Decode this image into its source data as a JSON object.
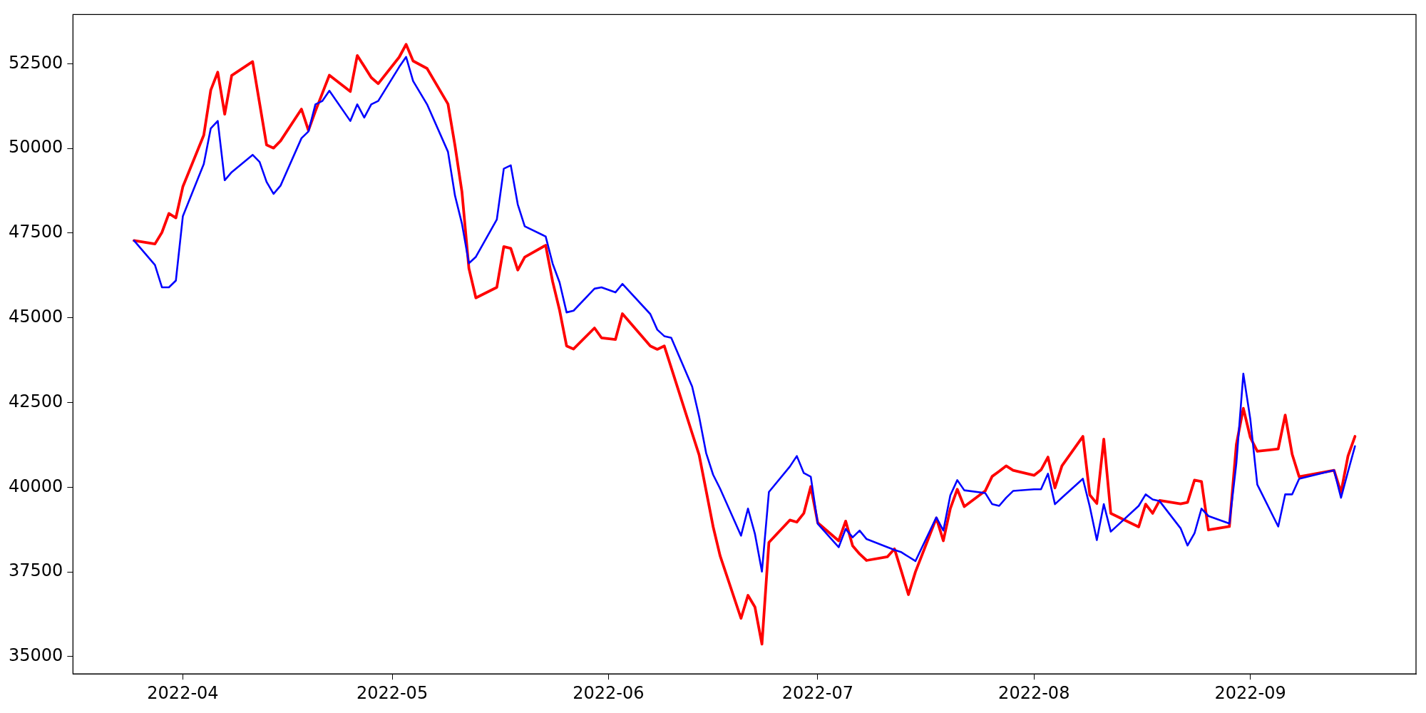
{
  "chart_data": {
    "type": "line",
    "grid": false,
    "marker": "none",
    "x": [
      "2022-03-25",
      "2022-03-28",
      "2022-03-29",
      "2022-03-30",
      "2022-03-31",
      "2022-04-01",
      "2022-04-04",
      "2022-04-05",
      "2022-04-06",
      "2022-04-07",
      "2022-04-08",
      "2022-04-11",
      "2022-04-12",
      "2022-04-13",
      "2022-04-14",
      "2022-04-15",
      "2022-04-18",
      "2022-04-19",
      "2022-04-20",
      "2022-04-21",
      "2022-04-22",
      "2022-04-25",
      "2022-04-26",
      "2022-04-27",
      "2022-04-28",
      "2022-04-29",
      "2022-05-02",
      "2022-05-03",
      "2022-05-04",
      "2022-05-06",
      "2022-05-09",
      "2022-05-10",
      "2022-05-11",
      "2022-05-12",
      "2022-05-13",
      "2022-05-16",
      "2022-05-17",
      "2022-05-18",
      "2022-05-19",
      "2022-05-20",
      "2022-05-23",
      "2022-05-24",
      "2022-05-25",
      "2022-05-26",
      "2022-05-27",
      "2022-05-30",
      "2022-05-31",
      "2022-06-02",
      "2022-06-03",
      "2022-06-07",
      "2022-06-08",
      "2022-06-09",
      "2022-06-10",
      "2022-06-13",
      "2022-06-14",
      "2022-06-15",
      "2022-06-16",
      "2022-06-17",
      "2022-06-20",
      "2022-06-21",
      "2022-06-22",
      "2022-06-23",
      "2022-06-24",
      "2022-06-27",
      "2022-06-28",
      "2022-06-29",
      "2022-06-30",
      "2022-07-01",
      "2022-07-04",
      "2022-07-05",
      "2022-07-06",
      "2022-07-07",
      "2022-07-08",
      "2022-07-11",
      "2022-07-12",
      "2022-07-13",
      "2022-07-14",
      "2022-07-15",
      "2022-07-18",
      "2022-07-19",
      "2022-07-20",
      "2022-07-21",
      "2022-07-22",
      "2022-07-25",
      "2022-07-26",
      "2022-07-27",
      "2022-07-28",
      "2022-07-29",
      "2022-08-01",
      "2022-08-02",
      "2022-08-03",
      "2022-08-04",
      "2022-08-05",
      "2022-08-08",
      "2022-08-09",
      "2022-08-10",
      "2022-08-11",
      "2022-08-12",
      "2022-08-16",
      "2022-08-17",
      "2022-08-18",
      "2022-08-19",
      "2022-08-22",
      "2022-08-23",
      "2022-08-24",
      "2022-08-25",
      "2022-08-26",
      "2022-08-29",
      "2022-08-30",
      "2022-08-31",
      "2022-09-01",
      "2022-09-02",
      "2022-09-05",
      "2022-09-06",
      "2022-09-07",
      "2022-09-08",
      "2022-09-13",
      "2022-09-14",
      "2022-09-15",
      "2022-09-16"
    ],
    "series": [
      {
        "color": "#ff0000",
        "values": [
          47280,
          47180,
          47520,
          48080,
          47950,
          48870,
          50390,
          51720,
          52250,
          51010,
          52150,
          52560,
          51330,
          50100,
          50010,
          50220,
          51160,
          50530,
          51100,
          51630,
          52160,
          51680,
          52740,
          52420,
          52090,
          51910,
          52690,
          53070,
          52580,
          52360,
          51310,
          50090,
          48720,
          46460,
          45590,
          45900,
          47100,
          47050,
          46410,
          46790,
          47140,
          46070,
          45220,
          44170,
          44080,
          44700,
          44410,
          44360,
          45120,
          44170,
          44070,
          44170,
          43530,
          41590,
          40950,
          39900,
          38840,
          37980,
          36130,
          36810,
          36460,
          35370,
          38370,
          39030,
          38970,
          39230,
          40020,
          38950,
          38420,
          39000,
          38270,
          38030,
          37840,
          37950,
          38180,
          37510,
          36830,
          37500,
          39090,
          38420,
          39370,
          39940,
          39430,
          39890,
          40320,
          40470,
          40630,
          40500,
          40350,
          40510,
          40890,
          39980,
          40630,
          41500,
          39770,
          39520,
          41420,
          39230,
          38830,
          39500,
          39230,
          39610,
          39510,
          39550,
          40210,
          40170,
          38740,
          38840,
          41260,
          42330,
          41470,
          41060,
          41130,
          42130,
          40970,
          40310,
          40500,
          39850,
          40920,
          41500
        ]
      },
      {
        "color": "#0000ff",
        "values": [
          47280,
          46560,
          45900,
          45900,
          46100,
          48000,
          49540,
          50590,
          50810,
          49060,
          49300,
          49810,
          49600,
          49010,
          48660,
          48900,
          50300,
          50500,
          51300,
          51400,
          51700,
          50810,
          51300,
          50910,
          51300,
          51400,
          52400,
          52700,
          51990,
          51300,
          49900,
          48610,
          47780,
          46610,
          46800,
          47900,
          49400,
          49500,
          48350,
          47700,
          47400,
          46600,
          46040,
          45160,
          45210,
          45860,
          45900,
          45750,
          46000,
          45110,
          44650,
          44460,
          44410,
          42970,
          42080,
          41010,
          40370,
          39960,
          38570,
          39370,
          38620,
          37510,
          39860,
          40610,
          40920,
          40420,
          40310,
          38920,
          38230,
          38770,
          38520,
          38720,
          38470,
          38230,
          38150,
          38080,
          37950,
          37820,
          39110,
          38720,
          39760,
          40210,
          39910,
          39830,
          39500,
          39450,
          39690,
          39890,
          39940,
          39940,
          40400,
          39500,
          39690,
          40250,
          39420,
          38440,
          39500,
          38690,
          39450,
          39790,
          39640,
          39590,
          38790,
          38280,
          38640,
          39370,
          39150,
          38930,
          40710,
          43350,
          42010,
          40080,
          38840,
          39790,
          39790,
          40250,
          40500,
          39690,
          40460,
          41210
        ]
      }
    ],
    "xlim": [
      "2022-03-16T06:00",
      "2022-09-24T18:00"
    ],
    "xticks": [
      {
        "value": "2022-04-01",
        "label": "2022-04"
      },
      {
        "value": "2022-05-01",
        "label": "2022-05"
      },
      {
        "value": "2022-06-01",
        "label": "2022-06"
      },
      {
        "value": "2022-07-01",
        "label": "2022-07"
      },
      {
        "value": "2022-08-01",
        "label": "2022-08"
      },
      {
        "value": "2022-09-01",
        "label": "2022-09"
      }
    ],
    "ylim": [
      34490,
      53950
    ],
    "yticks": [
      35000,
      37500,
      40000,
      42500,
      45000,
      47500,
      50000,
      52500
    ]
  }
}
